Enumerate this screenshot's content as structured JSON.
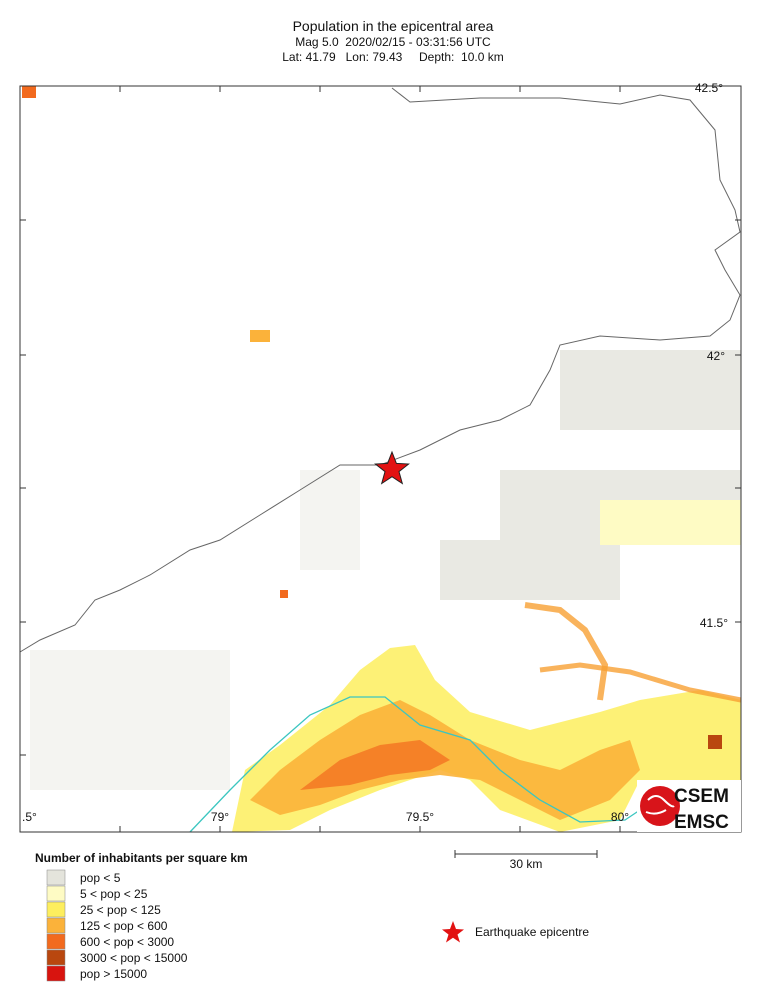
{
  "header": {
    "title": "Population in the epicentral area",
    "line2": "Mag 5.0  2020/02/15 - 03:31:56 UTC",
    "line3": "Lat: 41.79   Lon: 79.43     Depth:  10.0 km"
  },
  "map": {
    "lat_labels": [
      "42.5°",
      "42°",
      "41.5°"
    ],
    "lon_labels": [
      ".5°",
      "79°",
      "79.5°",
      "80°"
    ],
    "scale_label": "30 km",
    "logo": [
      "CSEM",
      "EMSC"
    ]
  },
  "legend": {
    "title": "Number of inhabitants per square km",
    "items": [
      {
        "label": "pop < 5",
        "color": "#e4e4dc"
      },
      {
        "label": "5 < pop < 25",
        "color": "#fefbc4"
      },
      {
        "label": "25 < pop < 125",
        "color": "#fdee5e"
      },
      {
        "label": "125 < pop < 600",
        "color": "#fbb23a"
      },
      {
        "label": "600 < pop < 3000",
        "color": "#f26a1e"
      },
      {
        "label": "3000 < pop < 15000",
        "color": "#b9470f"
      },
      {
        "label": "pop > 15000",
        "color": "#d8140f"
      }
    ],
    "epicentre": "Earthquake epicentre"
  }
}
